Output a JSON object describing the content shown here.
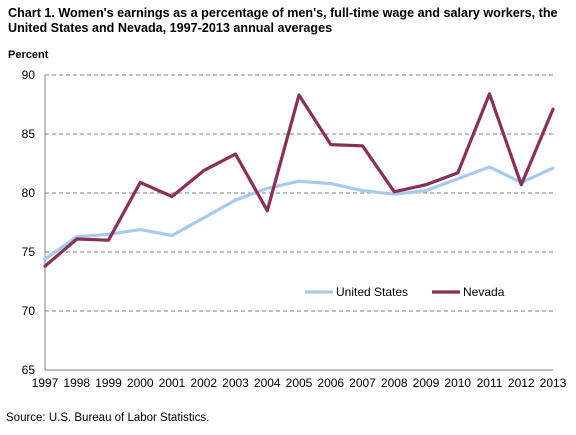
{
  "chart_data": {
    "type": "line",
    "title": "Chart 1. Women's earnings as a percentage of men's, full-time wage and salary workers, the United States and Nevada, 1997-2013  annual averages",
    "ylabel": "Percent",
    "xlabel": "",
    "ylim": [
      65,
      90
    ],
    "yticks": [
      "65",
      "70",
      "75",
      "80",
      "85",
      "90"
    ],
    "grid": "horizontal dashed",
    "legend_position": "center-right",
    "categories": [
      "1997",
      "1998",
      "1999",
      "2000",
      "2001",
      "2002",
      "2003",
      "2004",
      "2005",
      "2006",
      "2007",
      "2008",
      "2009",
      "2010",
      "2011",
      "2012",
      "2013"
    ],
    "series": [
      {
        "name": "United States",
        "color": "#a6caf0",
        "values": [
          74.4,
          76.3,
          76.5,
          76.9,
          76.4,
          77.9,
          79.4,
          80.4,
          81.0,
          80.8,
          80.2,
          79.9,
          80.2,
          81.2,
          82.2,
          80.9,
          82.1
        ]
      },
      {
        "name": "Nevada",
        "color": "#8b2f55",
        "values": [
          73.8,
          76.1,
          76.0,
          80.9,
          79.7,
          81.9,
          83.3,
          78.5,
          88.3,
          84.1,
          84.0,
          80.1,
          80.7,
          81.7,
          88.4,
          80.7,
          87.1
        ]
      }
    ]
  },
  "source": "Source:  U.S.  Bureau of Labor Statistics."
}
